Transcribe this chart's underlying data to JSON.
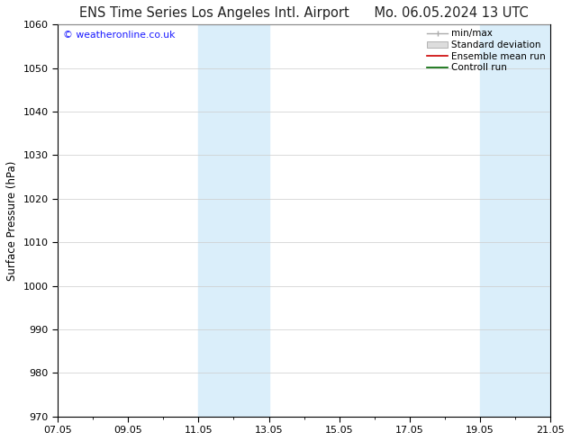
{
  "title_left": "ENS Time Series Los Angeles Intl. Airport",
  "title_right": "Mo. 06.05.2024 13 UTC",
  "ylabel": "Surface Pressure (hPa)",
  "ylim": [
    970,
    1060
  ],
  "yticks": [
    970,
    980,
    990,
    1000,
    1010,
    1020,
    1030,
    1040,
    1050,
    1060
  ],
  "xlim": [
    0,
    14
  ],
  "xtick_labels": [
    "07.05",
    "09.05",
    "11.05",
    "13.05",
    "15.05",
    "17.05",
    "19.05",
    "21.05"
  ],
  "xtick_positions": [
    0,
    2,
    4,
    6,
    8,
    10,
    12,
    14
  ],
  "shaded_bands": [
    {
      "x_start": 4.0,
      "x_end": 5.0,
      "color": "#daeefa"
    },
    {
      "x_start": 5.0,
      "x_end": 6.0,
      "color": "#daeefa"
    },
    {
      "x_start": 12.0,
      "x_end": 13.0,
      "color": "#daeefa"
    },
    {
      "x_start": 13.0,
      "x_end": 14.0,
      "color": "#daeefa"
    }
  ],
  "legend_labels": [
    "min/max",
    "Standard deviation",
    "Ensemble mean run",
    "Controll run"
  ],
  "watermark": "© weatheronline.co.uk",
  "watermark_color": "#1a1aff",
  "background_color": "#ffffff",
  "plot_bg_color": "#ffffff",
  "grid_color": "#cccccc",
  "title_color": "#222222",
  "title_fontsize": 10.5,
  "ylabel_fontsize": 8.5,
  "tick_fontsize": 8,
  "legend_fontsize": 7.5
}
